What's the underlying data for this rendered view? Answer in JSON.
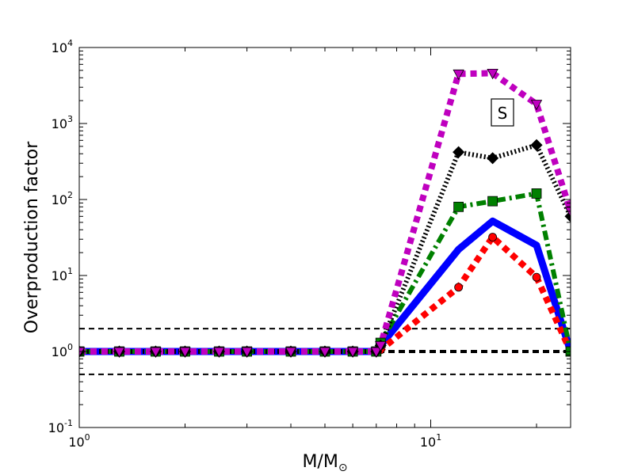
{
  "chart_data": {
    "type": "line",
    "xlabel_main": "M/M",
    "xlabel_sub": "⊙",
    "ylabel": "Overproduction factor",
    "annotation": "S",
    "x_scale": "log",
    "y_scale": "log",
    "xlim": [
      1.0,
      25.0
    ],
    "ylim": [
      0.1,
      10000
    ],
    "x_ticks": [
      {
        "value": 1,
        "base": "10",
        "exp": "0"
      },
      {
        "value": 10,
        "base": "10",
        "exp": "1"
      }
    ],
    "y_ticks": [
      {
        "value": 0.1,
        "base": "10",
        "exp": "-1"
      },
      {
        "value": 1,
        "base": "10",
        "exp": "0"
      },
      {
        "value": 10,
        "base": "10",
        "exp": "1"
      },
      {
        "value": 100,
        "base": "10",
        "exp": "2"
      },
      {
        "value": 1000,
        "base": "10",
        "exp": "3"
      },
      {
        "value": 10000,
        "base": "10",
        "exp": "4"
      }
    ],
    "reference_lines": [
      {
        "y": 2.0,
        "style": "dashed",
        "color": "#000000"
      },
      {
        "y": 1.0,
        "style": "dashed-bold",
        "color": "#000000"
      },
      {
        "y": 0.5,
        "style": "dashed",
        "color": "#000000"
      }
    ],
    "series": [
      {
        "color": "#0000ff",
        "style": "solid",
        "marker": "none",
        "x": [
          1,
          1.3,
          1.65,
          2,
          2.5,
          3,
          4,
          5,
          6,
          7,
          7.2,
          12,
          15,
          20,
          25
        ],
        "y": [
          1,
          1,
          1,
          1,
          1,
          1,
          1,
          1,
          1,
          1,
          1.2,
          22,
          52,
          25,
          1
        ]
      },
      {
        "color": "#ff0000",
        "style": "dotted",
        "marker": "circle",
        "x": [
          1,
          1.3,
          1.65,
          2,
          2.5,
          3,
          4,
          5,
          6,
          7,
          7.2,
          12,
          15,
          20,
          25
        ],
        "y": [
          1,
          1,
          1,
          1,
          1,
          1,
          1,
          1,
          1,
          1,
          1.05,
          7,
          32,
          9.5,
          1
        ]
      },
      {
        "color": "#008000",
        "style": "dashdot",
        "marker": "square",
        "x": [
          1,
          1.3,
          1.65,
          2,
          2.5,
          3,
          4,
          5,
          6,
          7,
          7.2,
          12,
          15,
          20,
          25
        ],
        "y": [
          1,
          1,
          1,
          1,
          1,
          1,
          1,
          1,
          1,
          1,
          1.3,
          80,
          95,
          120,
          1
        ]
      },
      {
        "color": "#000000",
        "style": "dotted-fine",
        "marker": "diamond",
        "x": [
          1,
          1.3,
          1.65,
          2,
          2.5,
          3,
          4,
          5,
          6,
          7,
          7.2,
          12,
          15,
          20,
          25
        ],
        "y": [
          1,
          1,
          1,
          1,
          1,
          1,
          1,
          1,
          1,
          1,
          1.2,
          420,
          350,
          520,
          60
        ]
      },
      {
        "color": "#bf00bf",
        "style": "dotted",
        "marker": "triangle-down",
        "x": [
          1,
          1.3,
          1.65,
          2,
          2.5,
          3,
          4,
          5,
          6,
          7,
          7.2,
          12,
          15,
          20,
          25
        ],
        "y": [
          1,
          1,
          1,
          1,
          1,
          1,
          1,
          1,
          1,
          1,
          1.2,
          4500,
          4600,
          1800,
          70
        ]
      }
    ]
  }
}
